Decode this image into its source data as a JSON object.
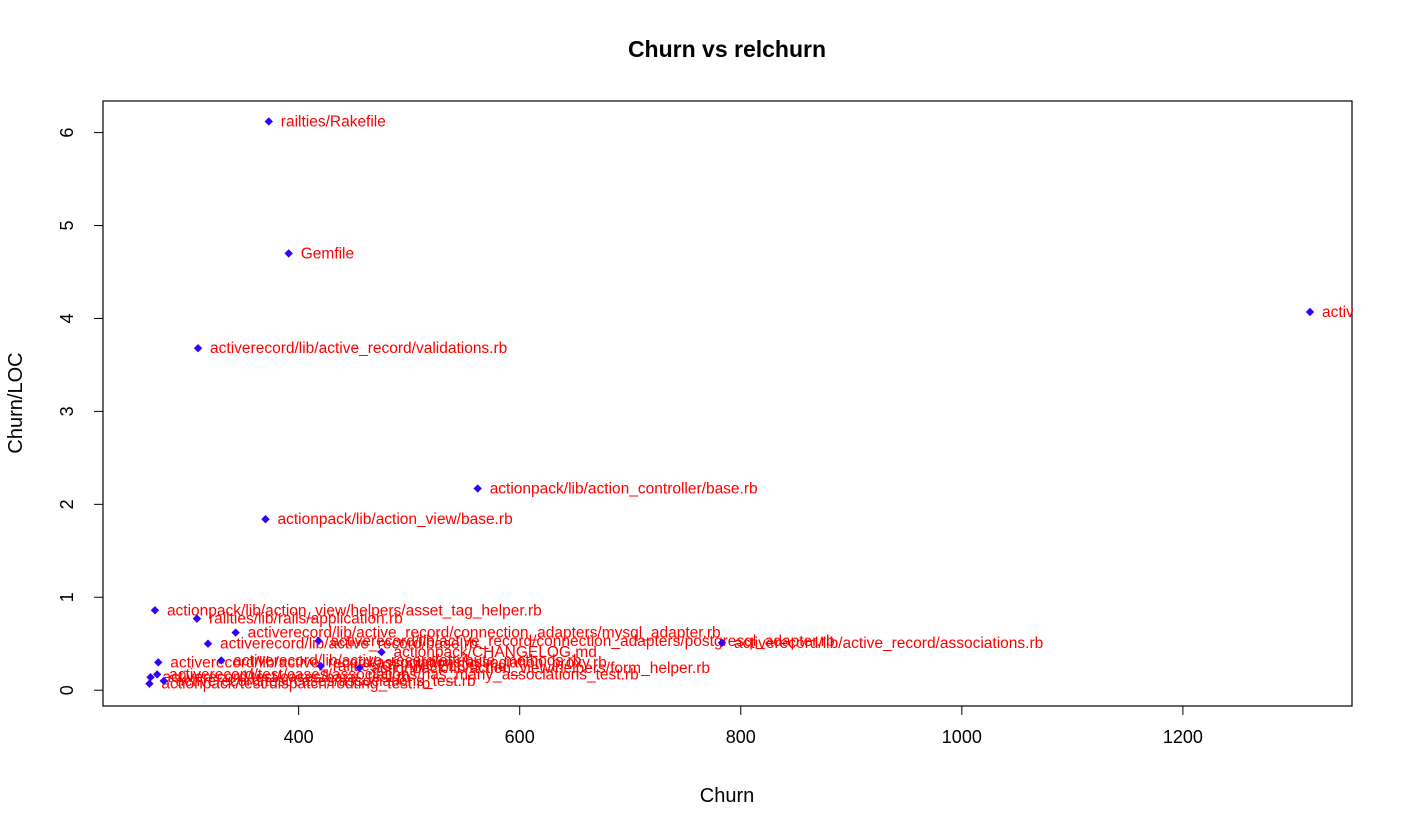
{
  "chart_data": {
    "type": "scatter",
    "title": "Churn vs relchurn",
    "xlabel": "Churn",
    "ylabel": "Churn/LOC",
    "xlim": [
      223,
      1353
    ],
    "ylim": [
      -0.17,
      6.34
    ],
    "x_ticks": [
      400,
      600,
      800,
      1000,
      1200
    ],
    "y_ticks": [
      0,
      1,
      2,
      3,
      4,
      5,
      6
    ],
    "grid": false,
    "point_color": "#3300ff",
    "label_color": "#ff0000",
    "points": [
      {
        "x": 373,
        "y": 6.12,
        "label": "railties/Rakefile"
      },
      {
        "x": 391,
        "y": 4.7,
        "label": "Gemfile"
      },
      {
        "x": 1315,
        "y": 4.07,
        "label": "activerecord/CHANGELOG.md"
      },
      {
        "x": 309,
        "y": 3.68,
        "label": "activerecord/lib/active_record/validations.rb"
      },
      {
        "x": 562,
        "y": 2.17,
        "label": "actionpack/lib/action_controller/base.rb"
      },
      {
        "x": 370,
        "y": 1.84,
        "label": "actionpack/lib/action_view/base.rb"
      },
      {
        "x": 270,
        "y": 0.86,
        "label": "actionpack/lib/action_view/helpers/asset_tag_helper.rb"
      },
      {
        "x": 308,
        "y": 0.77,
        "label": "railties/lib/rails/application.rb"
      },
      {
        "x": 343,
        "y": 0.62,
        "label": "activerecord/lib/active_record/connection_adapters/mysql_adapter.rb"
      },
      {
        "x": 318,
        "y": 0.5,
        "label": "activerecord/lib/active_record/base.rb"
      },
      {
        "x": 418,
        "y": 0.53,
        "label": "activerecord/lib/active_record/connection_adapters/postgresql_adapter.rb"
      },
      {
        "x": 783,
        "y": 0.51,
        "label": "activerecord/lib/active_record/associations.rb"
      },
      {
        "x": 475,
        "y": 0.41,
        "label": "actionpack/CHANGELOG.md"
      },
      {
        "x": 273,
        "y": 0.3,
        "label": "activerecord/lib/active_record/associations/association_proxy.rb"
      },
      {
        "x": 420,
        "y": 0.26,
        "label": "railties/CHANGELOG.md"
      },
      {
        "x": 330,
        "y": 0.32,
        "label": "activerecord/lib/active_record/attribute_methods.rb"
      },
      {
        "x": 455,
        "y": 0.24,
        "label": "actionpack/lib/action_view/helpers/form_helper.rb"
      },
      {
        "x": 272,
        "y": 0.17,
        "label": "activerecord/test/cases/associations/has_many_associations_test.rb"
      },
      {
        "x": 266,
        "y": 0.14,
        "label": "activerecord/test/cases/base_test.rb"
      },
      {
        "x": 278,
        "y": 0.1,
        "label": "activerecord/test/cases/associations_test.rb"
      },
      {
        "x": 265,
        "y": 0.07,
        "label": "actionpack/test/dispatch/routing_test.rb"
      }
    ]
  }
}
